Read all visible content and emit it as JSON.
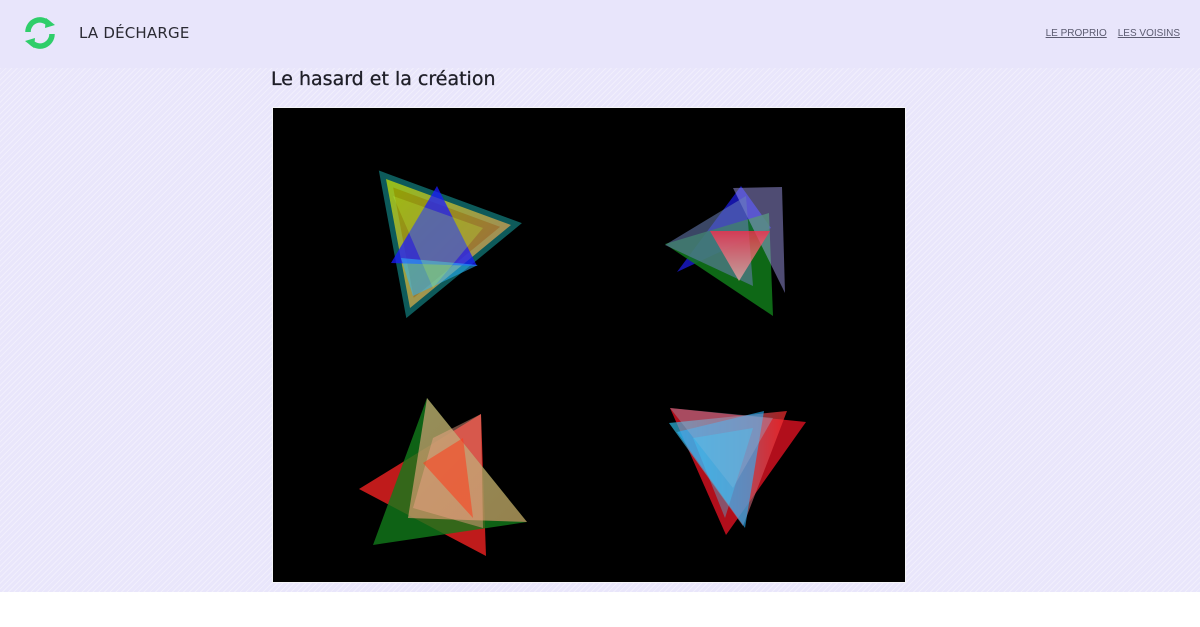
{
  "site": {
    "title": "LA DÉCHARGE",
    "logo_icon": "refresh-circle-icon",
    "logo_color": "#2fce6a"
  },
  "nav": {
    "items": [
      {
        "label": "LE PROPRIO"
      },
      {
        "label": "LES VOISINS"
      }
    ]
  },
  "article": {
    "title": "Le hasard et la création"
  },
  "artwork": {
    "background": "#000000",
    "groups": [
      "top-left",
      "top-right",
      "bottom-left",
      "bottom-right"
    ]
  }
}
